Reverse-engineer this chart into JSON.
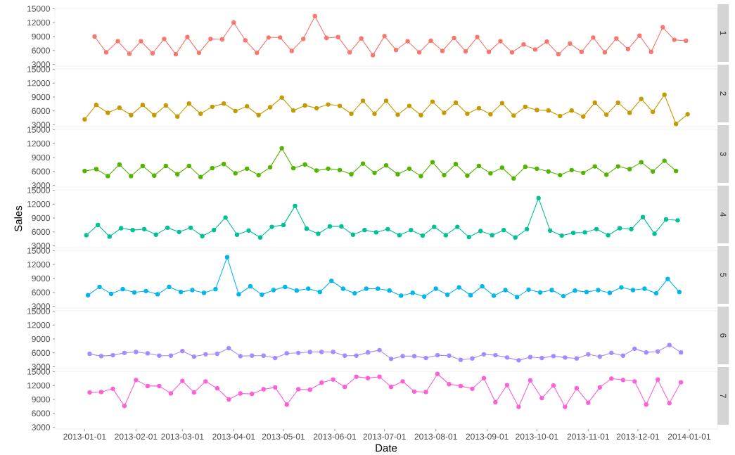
{
  "chart_data": [
    {
      "type": "line",
      "title": "1",
      "color": "#f8766d",
      "marker": "circle",
      "tick_labels": "y",
      "xlim": [
        "2012-12-14",
        "2014-01-18"
      ],
      "ylim": [
        2635,
        15065
      ],
      "yticks": [
        3000,
        6000,
        9000,
        12000,
        15000
      ],
      "x": [
        "2013-01-07",
        "2013-01-14",
        "2013-01-21",
        "2013-01-28",
        "2013-02-04",
        "2013-02-11",
        "2013-02-18",
        "2013-02-25",
        "2013-03-04",
        "2013-03-11",
        "2013-03-18",
        "2013-03-25",
        "2013-04-01",
        "2013-04-08",
        "2013-04-15",
        "2013-04-22",
        "2013-04-29",
        "2013-05-06",
        "2013-05-13",
        "2013-05-20",
        "2013-05-27",
        "2013-06-03",
        "2013-06-10",
        "2013-06-17",
        "2013-06-24",
        "2013-07-01",
        "2013-07-08",
        "2013-07-15",
        "2013-07-22",
        "2013-07-29",
        "2013-08-05",
        "2013-08-12",
        "2013-08-19",
        "2013-08-26",
        "2013-09-02",
        "2013-09-09",
        "2013-09-16",
        "2013-09-23",
        "2013-09-30",
        "2013-10-07",
        "2013-10-14",
        "2013-10-21",
        "2013-10-28",
        "2013-11-04",
        "2013-11-11",
        "2013-11-18",
        "2013-11-25",
        "2013-12-02",
        "2013-12-09",
        "2013-12-16",
        "2013-12-23",
        "2013-12-30"
      ],
      "values": [
        9000,
        5600,
        8000,
        5300,
        8000,
        5400,
        8500,
        5200,
        8900,
        5500,
        8500,
        8400,
        12000,
        8200,
        5500,
        8800,
        8800,
        5900,
        8500,
        13400,
        8700,
        8900,
        5600,
        8600,
        5000,
        9100,
        6100,
        8000,
        5600,
        8100,
        5900,
        8700,
        5800,
        8900,
        5700,
        8000,
        5600,
        7300,
        6200,
        7900,
        5200,
        7500,
        5700,
        8800,
        5600,
        8600,
        6300,
        9200,
        5700,
        11000,
        8300,
        8100
      ]
    },
    {
      "type": "line",
      "title": "2",
      "color": "#c49a00",
      "marker": "circle",
      "tick_labels": "y",
      "xlim": [
        "2012-12-14",
        "2014-01-18"
      ],
      "ylim": [
        2635,
        15065
      ],
      "yticks": [
        3000,
        6000,
        9000,
        12000,
        15000
      ],
      "x": [
        "2013-01-01",
        "2013-01-08",
        "2013-01-15",
        "2013-01-22",
        "2013-01-29",
        "2013-02-05",
        "2013-02-12",
        "2013-02-19",
        "2013-02-26",
        "2013-03-05",
        "2013-03-12",
        "2013-03-19",
        "2013-03-26",
        "2013-04-02",
        "2013-04-09",
        "2013-04-16",
        "2013-04-23",
        "2013-04-30",
        "2013-05-07",
        "2013-05-14",
        "2013-05-21",
        "2013-05-28",
        "2013-06-04",
        "2013-06-11",
        "2013-06-18",
        "2013-06-25",
        "2013-07-02",
        "2013-07-09",
        "2013-07-16",
        "2013-07-23",
        "2013-07-30",
        "2013-08-06",
        "2013-08-13",
        "2013-08-20",
        "2013-08-27",
        "2013-09-03",
        "2013-09-10",
        "2013-09-17",
        "2013-09-24",
        "2013-10-01",
        "2013-10-08",
        "2013-10-15",
        "2013-10-22",
        "2013-10-29",
        "2013-11-05",
        "2013-11-12",
        "2013-11-19",
        "2013-11-26",
        "2013-12-03",
        "2013-12-10",
        "2013-12-17",
        "2013-12-24",
        "2013-12-31"
      ],
      "values": [
        4200,
        7300,
        5600,
        6700,
        5100,
        7300,
        5100,
        7200,
        4800,
        7600,
        5400,
        6900,
        7600,
        6000,
        7000,
        5100,
        6800,
        8900,
        6100,
        7200,
        6600,
        7400,
        7100,
        5400,
        8200,
        5400,
        8200,
        5200,
        7100,
        5100,
        8000,
        5600,
        7800,
        5400,
        6600,
        5300,
        7700,
        5000,
        6900,
        6200,
        6100,
        4900,
        6100,
        4800,
        7800,
        5200,
        7800,
        5600,
        8600,
        5800,
        9500,
        3200,
        5300
      ]
    },
    {
      "type": "line",
      "title": "3",
      "color": "#53b400",
      "marker": "circle",
      "tick_labels": "y",
      "xlim": [
        "2012-12-14",
        "2014-01-18"
      ],
      "ylim": [
        2635,
        15065
      ],
      "yticks": [
        3000,
        6000,
        9000,
        12000,
        15000
      ],
      "x": [
        "2013-01-01",
        "2013-01-08",
        "2013-01-15",
        "2013-01-22",
        "2013-01-29",
        "2013-02-05",
        "2013-02-12",
        "2013-02-19",
        "2013-02-26",
        "2013-03-05",
        "2013-03-12",
        "2013-03-19",
        "2013-03-26",
        "2013-04-02",
        "2013-04-09",
        "2013-04-16",
        "2013-04-23",
        "2013-04-30",
        "2013-05-07",
        "2013-05-14",
        "2013-05-21",
        "2013-05-28",
        "2013-06-04",
        "2013-06-11",
        "2013-06-18",
        "2013-06-25",
        "2013-07-02",
        "2013-07-09",
        "2013-07-16",
        "2013-07-23",
        "2013-07-30",
        "2013-08-06",
        "2013-08-13",
        "2013-08-20",
        "2013-08-27",
        "2013-09-03",
        "2013-09-10",
        "2013-09-17",
        "2013-09-24",
        "2013-10-01",
        "2013-10-08",
        "2013-10-15",
        "2013-10-22",
        "2013-10-29",
        "2013-11-05",
        "2013-11-12",
        "2013-11-19",
        "2013-11-26",
        "2013-12-03",
        "2013-12-10",
        "2013-12-17",
        "2013-12-24"
      ],
      "values": [
        6100,
        6500,
        5000,
        7500,
        5000,
        7200,
        5100,
        7200,
        5400,
        7200,
        4800,
        6700,
        7600,
        5600,
        6600,
        5200,
        6900,
        11000,
        6700,
        7500,
        6200,
        6600,
        6300,
        5400,
        7700,
        5700,
        7300,
        5400,
        6600,
        5000,
        8000,
        5200,
        7600,
        5100,
        7200,
        5600,
        6800,
        4500,
        7000,
        6600,
        6000,
        5200,
        6300,
        5700,
        7100,
        5300,
        7100,
        6500,
        8000,
        6000,
        8300,
        6100
      ]
    },
    {
      "type": "line",
      "title": "4",
      "ylabel": "Sales",
      "color": "#00c094",
      "marker": "circle",
      "tick_labels": "y",
      "xlim": [
        "2012-12-14",
        "2014-01-18"
      ],
      "ylim": [
        2635,
        15065
      ],
      "yticks": [
        3000,
        6000,
        9000,
        12000,
        15000
      ],
      "x": [
        "2013-01-02",
        "2013-01-09",
        "2013-01-16",
        "2013-01-23",
        "2013-01-30",
        "2013-02-06",
        "2013-02-13",
        "2013-02-20",
        "2013-02-27",
        "2013-03-06",
        "2013-03-13",
        "2013-03-20",
        "2013-03-27",
        "2013-04-03",
        "2013-04-10",
        "2013-04-17",
        "2013-04-24",
        "2013-05-01",
        "2013-05-08",
        "2013-05-15",
        "2013-05-22",
        "2013-05-29",
        "2013-06-05",
        "2013-06-12",
        "2013-06-19",
        "2013-06-26",
        "2013-07-03",
        "2013-07-10",
        "2013-07-17",
        "2013-07-24",
        "2013-07-31",
        "2013-08-07",
        "2013-08-14",
        "2013-08-21",
        "2013-08-28",
        "2013-09-04",
        "2013-09-11",
        "2013-09-18",
        "2013-09-25",
        "2013-10-02",
        "2013-10-09",
        "2013-10-16",
        "2013-10-23",
        "2013-10-30",
        "2013-11-06",
        "2013-11-13",
        "2013-11-20",
        "2013-11-27",
        "2013-12-04",
        "2013-12-11",
        "2013-12-18",
        "2013-12-25"
      ],
      "values": [
        5300,
        7500,
        5000,
        6800,
        6400,
        6600,
        5400,
        6900,
        6000,
        6900,
        5100,
        6400,
        9100,
        5400,
        6300,
        4800,
        7100,
        7500,
        11600,
        6700,
        5600,
        7200,
        7200,
        5400,
        6400,
        5900,
        6600,
        5300,
        6400,
        5200,
        7100,
        5300,
        7100,
        4900,
        6200,
        5300,
        6400,
        4800,
        6600,
        13300,
        6300,
        5200,
        5800,
        5900,
        6600,
        5300,
        6800,
        6600,
        9200,
        5600,
        8700,
        8500
      ]
    },
    {
      "type": "line",
      "title": "5",
      "color": "#00b6eb",
      "marker": "circle",
      "tick_labels": "y",
      "xlim": [
        "2012-12-14",
        "2014-01-18"
      ],
      "ylim": [
        2635,
        15065
      ],
      "yticks": [
        3000,
        6000,
        9000,
        12000,
        15000
      ],
      "x": [
        "2013-01-03",
        "2013-01-10",
        "2013-01-17",
        "2013-01-24",
        "2013-01-31",
        "2013-02-07",
        "2013-02-14",
        "2013-02-21",
        "2013-02-28",
        "2013-03-07",
        "2013-03-14",
        "2013-03-21",
        "2013-03-28",
        "2013-04-04",
        "2013-04-11",
        "2013-04-18",
        "2013-04-25",
        "2013-05-02",
        "2013-05-09",
        "2013-05-16",
        "2013-05-23",
        "2013-05-30",
        "2013-06-06",
        "2013-06-13",
        "2013-06-20",
        "2013-06-27",
        "2013-07-04",
        "2013-07-11",
        "2013-07-18",
        "2013-07-25",
        "2013-08-01",
        "2013-08-08",
        "2013-08-15",
        "2013-08-22",
        "2013-08-29",
        "2013-09-05",
        "2013-09-12",
        "2013-09-19",
        "2013-09-26",
        "2013-10-03",
        "2013-10-10",
        "2013-10-17",
        "2013-10-24",
        "2013-10-31",
        "2013-11-07",
        "2013-11-14",
        "2013-11-21",
        "2013-11-28",
        "2013-12-05",
        "2013-12-12",
        "2013-12-19",
        "2013-12-26"
      ],
      "values": [
        5400,
        7200,
        5700,
        6700,
        6000,
        6300,
        5600,
        7200,
        6100,
        6500,
        5900,
        6700,
        13600,
        5600,
        7300,
        5500,
        6500,
        7200,
        6400,
        6800,
        6100,
        8500,
        6800,
        5800,
        6800,
        6800,
        6400,
        5300,
        5900,
        5100,
        6800,
        5500,
        7100,
        5400,
        7300,
        5300,
        6500,
        5000,
        6600,
        6000,
        6500,
        5200,
        6400,
        6100,
        6500,
        5900,
        7100,
        6500,
        6800,
        5800,
        8900,
        6100
      ]
    },
    {
      "type": "line",
      "title": "6",
      "color": "#a58aff",
      "marker": "circle",
      "tick_labels": "y",
      "xlim": [
        "2012-12-14",
        "2014-01-18"
      ],
      "ylim": [
        2635,
        15065
      ],
      "yticks": [
        3000,
        6000,
        9000,
        12000,
        15000
      ],
      "x": [
        "2013-01-04",
        "2013-01-11",
        "2013-01-18",
        "2013-01-25",
        "2013-02-01",
        "2013-02-08",
        "2013-02-15",
        "2013-02-22",
        "2013-03-01",
        "2013-03-08",
        "2013-03-15",
        "2013-03-22",
        "2013-03-29",
        "2013-04-05",
        "2013-04-12",
        "2013-04-19",
        "2013-04-26",
        "2013-05-03",
        "2013-05-10",
        "2013-05-17",
        "2013-05-24",
        "2013-05-31",
        "2013-06-07",
        "2013-06-14",
        "2013-06-21",
        "2013-06-28",
        "2013-07-05",
        "2013-07-12",
        "2013-07-19",
        "2013-07-26",
        "2013-08-02",
        "2013-08-09",
        "2013-08-16",
        "2013-08-23",
        "2013-08-30",
        "2013-09-06",
        "2013-09-13",
        "2013-09-20",
        "2013-09-27",
        "2013-10-04",
        "2013-10-11",
        "2013-10-18",
        "2013-10-25",
        "2013-11-01",
        "2013-11-08",
        "2013-11-15",
        "2013-11-22",
        "2013-11-29",
        "2013-12-06",
        "2013-12-13",
        "2013-12-20",
        "2013-12-27"
      ],
      "values": [
        5800,
        5300,
        5500,
        6000,
        6200,
        5900,
        5400,
        5400,
        6400,
        5200,
        5700,
        5800,
        7000,
        5300,
        5400,
        5400,
        4900,
        5900,
        6000,
        6200,
        6200,
        6200,
        5400,
        5400,
        6100,
        6600,
        4700,
        5300,
        5300,
        4900,
        5500,
        5400,
        4500,
        4800,
        5700,
        5500,
        5000,
        4400,
        5100,
        4900,
        5300,
        5000,
        4800,
        5700,
        5200,
        6000,
        5400,
        6900,
        6100,
        6300,
        7700,
        6100
      ]
    },
    {
      "type": "line",
      "title": "7",
      "xlabel": "Date",
      "color": "#fb61d7",
      "marker": "circle",
      "xlim": [
        "2012-12-14",
        "2014-01-18"
      ],
      "ylim": [
        2635,
        15065
      ],
      "yticks": [
        3000,
        6000,
        9000,
        12000,
        15000
      ],
      "xticks": [
        "2013-01-01",
        "2013-02-01",
        "2013-03-01",
        "2013-04-01",
        "2013-05-01",
        "2013-06-01",
        "2013-07-01",
        "2013-08-01",
        "2013-09-01",
        "2013-10-01",
        "2013-11-01",
        "2013-12-01",
        "2014-01-01"
      ],
      "x": [
        "2013-01-04",
        "2013-01-11",
        "2013-01-18",
        "2013-01-25",
        "2013-02-01",
        "2013-02-08",
        "2013-02-15",
        "2013-02-22",
        "2013-03-01",
        "2013-03-08",
        "2013-03-15",
        "2013-03-22",
        "2013-03-29",
        "2013-04-05",
        "2013-04-12",
        "2013-04-19",
        "2013-04-26",
        "2013-05-03",
        "2013-05-10",
        "2013-05-17",
        "2013-05-24",
        "2013-05-31",
        "2013-06-07",
        "2013-06-14",
        "2013-06-21",
        "2013-06-28",
        "2013-07-05",
        "2013-07-12",
        "2013-07-19",
        "2013-07-26",
        "2013-08-02",
        "2013-08-09",
        "2013-08-16",
        "2013-08-23",
        "2013-08-30",
        "2013-09-06",
        "2013-09-13",
        "2013-09-20",
        "2013-09-27",
        "2013-10-04",
        "2013-10-11",
        "2013-10-18",
        "2013-10-25",
        "2013-11-01",
        "2013-11-08",
        "2013-11-15",
        "2013-11-22",
        "2013-11-29",
        "2013-12-06",
        "2013-12-13",
        "2013-12-20",
        "2013-12-27"
      ],
      "values": [
        10500,
        10600,
        11300,
        7600,
        13200,
        11900,
        11900,
        10300,
        13000,
        10500,
        12900,
        11400,
        9000,
        10300,
        10200,
        11200,
        11600,
        7900,
        11200,
        11100,
        12600,
        13300,
        11700,
        13900,
        13600,
        13900,
        11700,
        12900,
        10700,
        10600,
        14500,
        12300,
        11900,
        11300,
        13600,
        8400,
        12100,
        7400,
        13100,
        9300,
        12000,
        7400,
        11400,
        8300,
        11600,
        13500,
        13200,
        12900,
        7900,
        13300,
        8200,
        12700
      ]
    }
  ]
}
